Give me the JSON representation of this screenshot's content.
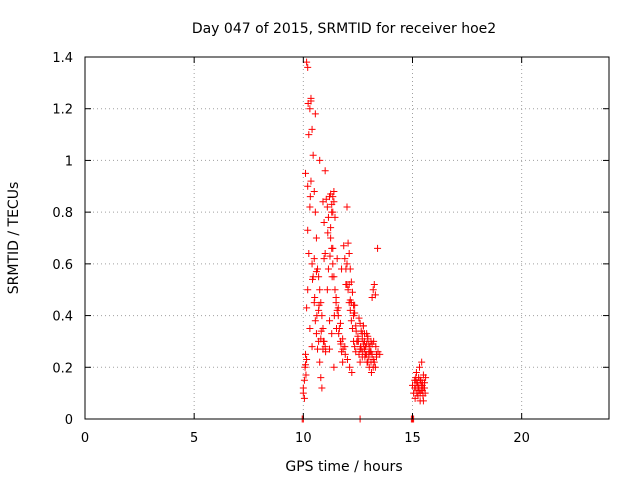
{
  "chart_data": {
    "type": "scatter",
    "title": "Day 047 of 2015, SRMTID for receiver hoe2",
    "xlabel": "GPS time / hours",
    "ylabel": "SRMTID / TECUs",
    "xlim": [
      0,
      24
    ],
    "ylim": [
      0,
      1.4
    ],
    "xticks": [
      0,
      5,
      10,
      15,
      20
    ],
    "xtick_labels": [
      "0",
      "5",
      "10",
      "15",
      "20"
    ],
    "yticks": [
      0,
      0.2,
      0.4,
      0.6,
      0.8,
      1.0,
      1.2,
      1.4
    ],
    "ytick_labels": [
      "0",
      "0.2",
      "0.4",
      "0.6",
      "0.8",
      "1",
      "1.2",
      "1.4"
    ],
    "grid": true,
    "marker": "+",
    "color": "#ff0000",
    "series": [
      {
        "name": "SRMTID",
        "x": [
          10.0,
          10.0,
          10.05,
          10.08,
          10.1,
          10.15,
          10.2,
          10.2,
          10.25,
          10.3,
          10.35,
          10.4,
          10.45,
          10.5,
          10.55,
          10.6,
          10.65,
          10.7,
          10.75,
          10.8,
          10.85,
          10.9,
          10.95,
          11.0,
          10.05,
          10.1,
          10.15,
          10.2,
          10.25,
          10.3,
          10.35,
          10.4,
          10.45,
          10.5,
          10.55,
          10.6,
          10.65,
          10.7,
          10.75,
          10.8,
          10.85,
          10.9,
          10.95,
          11.0,
          11.05,
          11.1,
          11.15,
          11.2,
          11.25,
          11.3,
          11.35,
          11.4,
          11.45,
          11.5,
          11.55,
          11.6,
          11.65,
          11.7,
          11.75,
          11.8,
          11.85,
          11.9,
          11.95,
          12.0,
          12.05,
          12.1,
          12.15,
          12.2,
          12.25,
          12.3,
          12.35,
          12.4,
          12.45,
          12.5,
          12.55,
          12.6,
          12.65,
          12.7,
          12.75,
          12.8,
          12.85,
          12.9,
          12.95,
          13.0,
          13.05,
          13.1,
          13.15,
          13.2,
          13.25,
          13.3,
          13.35,
          13.4,
          10.1,
          10.2,
          10.3,
          10.4,
          10.5,
          10.6,
          10.7,
          10.8,
          10.9,
          11.0,
          11.1,
          11.2,
          11.3,
          11.4,
          11.5,
          11.6,
          11.7,
          11.8,
          11.9,
          12.0,
          12.1,
          12.2,
          12.3,
          12.4,
          12.5,
          12.6,
          12.7,
          12.8,
          12.9,
          13.0,
          13.1,
          13.2,
          10.12,
          10.22,
          10.32,
          10.42,
          10.52,
          10.62,
          10.72,
          10.82,
          10.92,
          11.02,
          11.12,
          11.22,
          11.32,
          11.42,
          11.52,
          11.62,
          11.72,
          11.82,
          11.92,
          12.02,
          12.12,
          12.22,
          12.32,
          12.42,
          12.52,
          12.62,
          12.72,
          12.82,
          12.92,
          13.02,
          13.12,
          13.22,
          13.32,
          13.42,
          13.5,
          10.15,
          10.35,
          10.55,
          10.75,
          10.95,
          11.15,
          11.35,
          11.55,
          11.75,
          11.95,
          12.15,
          12.35,
          12.55,
          12.75,
          12.95,
          13.15,
          11.2,
          11.25,
          11.3,
          11.35,
          11.4,
          11.45,
          11.25,
          11.3,
          11.35,
          11.4,
          12.0,
          12.05,
          12.1,
          12.15,
          12.2,
          12.25,
          12.3,
          12.35,
          12.6,
          12.65,
          12.7,
          12.75,
          12.8,
          12.85,
          12.9,
          12.95,
          13.0,
          13.05,
          13.1,
          13.15,
          13.2,
          13.25,
          13.3,
          13.35,
          15.0,
          15.05,
          15.1,
          15.12,
          15.15,
          15.18,
          15.2,
          15.22,
          15.25,
          15.28,
          15.3,
          15.32,
          15.35,
          15.38,
          15.4,
          15.42,
          15.45,
          15.48,
          15.5,
          15.52,
          15.55,
          15.58,
          15.6,
          15.1,
          15.2,
          15.3,
          15.4,
          15.5,
          15.15,
          15.25,
          15.35,
          15.45,
          15.55,
          15.15,
          15.25,
          15.35,
          15.45,
          9.95,
          10.0,
          12.6,
          14.95,
          15.0,
          15.05
        ],
        "y": [
          0.1,
          0.12,
          0.15,
          0.2,
          0.95,
          1.38,
          1.36,
          0.9,
          1.1,
          1.2,
          1.23,
          1.12,
          1.02,
          0.88,
          0.8,
          0.7,
          0.58,
          0.55,
          0.5,
          0.45,
          0.4,
          0.35,
          0.3,
          0.28,
          0.08,
          0.25,
          0.43,
          0.73,
          0.64,
          0.82,
          0.92,
          0.6,
          0.55,
          0.45,
          0.38,
          0.33,
          0.27,
          0.3,
          0.22,
          0.16,
          0.12,
          0.84,
          0.76,
          0.96,
          0.85,
          0.82,
          0.78,
          0.86,
          0.7,
          0.66,
          0.6,
          0.55,
          0.5,
          0.45,
          0.42,
          0.4,
          0.35,
          0.3,
          0.26,
          0.22,
          0.67,
          0.62,
          0.58,
          0.52,
          0.5,
          0.45,
          0.42,
          0.38,
          0.35,
          0.3,
          0.28,
          0.26,
          0.3,
          0.32,
          0.25,
          0.22,
          0.27,
          0.33,
          0.36,
          0.3,
          0.28,
          0.25,
          0.22,
          0.24,
          0.26,
          0.3,
          0.47,
          0.5,
          0.52,
          0.48,
          0.25,
          0.66,
          0.21,
          0.5,
          0.35,
          0.28,
          0.62,
          0.57,
          0.42,
          0.31,
          0.27,
          0.64,
          0.5,
          0.38,
          0.33,
          0.2,
          0.47,
          0.43,
          0.37,
          0.31,
          0.28,
          0.6,
          0.52,
          0.45,
          0.4,
          0.36,
          0.3,
          0.27,
          0.24,
          0.33,
          0.29,
          0.26,
          0.22,
          0.2,
          0.17,
          1.22,
          0.86,
          0.54,
          0.47,
          0.4,
          0.44,
          0.34,
          0.3,
          0.26,
          0.72,
          0.63,
          0.55,
          0.4,
          0.35,
          0.33,
          0.29,
          0.27,
          0.25,
          0.23,
          0.2,
          0.18,
          0.41,
          0.34,
          0.3,
          0.28,
          0.26,
          0.24,
          0.22,
          0.2,
          0.18,
          0.3,
          0.28,
          0.26,
          0.25,
          0.23,
          1.24,
          1.18,
          1.0,
          0.62,
          0.58,
          0.66,
          0.62,
          0.58,
          0.52,
          0.46,
          0.44,
          0.39,
          0.36,
          0.32,
          0.29,
          0.27,
          0.87,
          0.83,
          0.8,
          0.84,
          0.78,
          0.74,
          0.8,
          0.86,
          0.88,
          0.82,
          0.68,
          0.64,
          0.58,
          0.53,
          0.49,
          0.44,
          0.41,
          0.37,
          0.34,
          0.31,
          0.29,
          0.27,
          0.25,
          0.33,
          0.31,
          0.29,
          0.28,
          0.26,
          0.25,
          0.23,
          0.22,
          0.2,
          0.24,
          0.13,
          0.1,
          0.15,
          0.08,
          0.12,
          0.18,
          0.1,
          0.14,
          0.09,
          0.16,
          0.12,
          0.2,
          0.07,
          0.15,
          0.11,
          0.22,
          0.13,
          0.09,
          0.17,
          0.12,
          0.14,
          0.1,
          0.16,
          0.12,
          0.14,
          0.11,
          0.13,
          0.07,
          0.15,
          0.12,
          0.1,
          0.14,
          0.12,
          0.16,
          0.13,
          0.15,
          0.11,
          0.0,
          0.0,
          0.0,
          0.0,
          0.0,
          0.0
        ]
      }
    ]
  }
}
